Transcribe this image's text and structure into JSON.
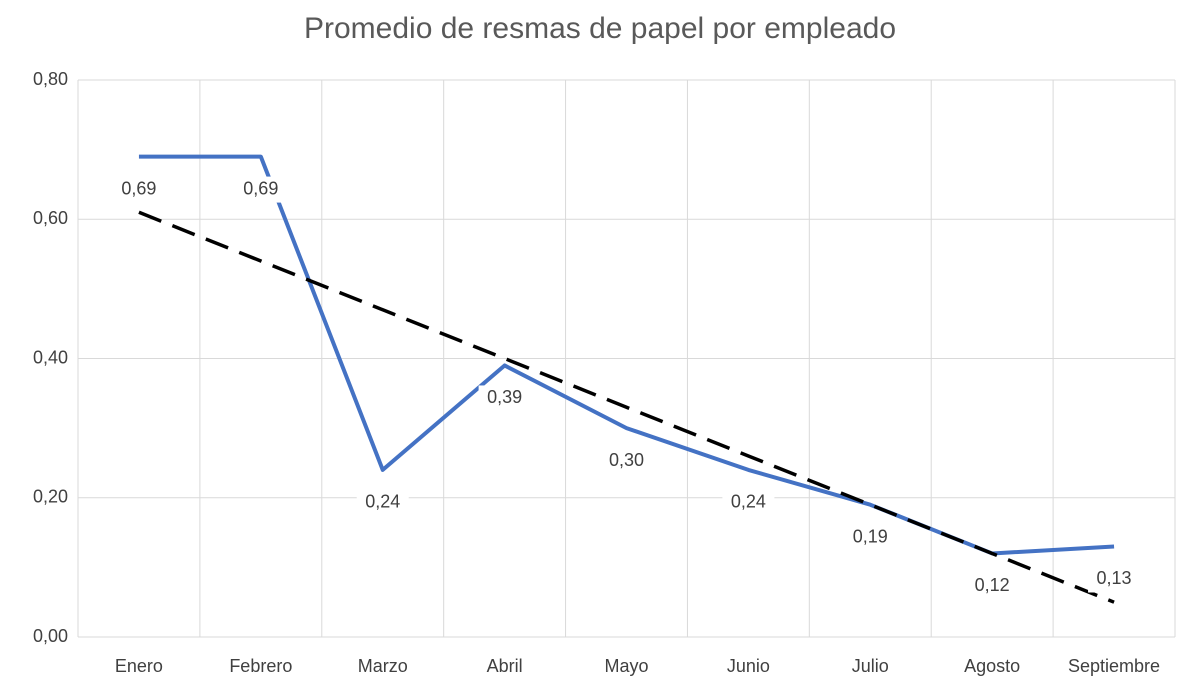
{
  "chart_data": {
    "type": "line",
    "title": "Promedio de resmas de papel por empleado",
    "categories": [
      "Enero",
      "Febrero",
      "Marzo",
      "Abril",
      "Mayo",
      "Junio",
      "Julio",
      "Agosto",
      "Septiembre"
    ],
    "series": [
      {
        "color": "#4472c4",
        "values": [
          0.69,
          0.69,
          0.24,
          0.39,
          0.3,
          0.24,
          0.19,
          0.12,
          0.13
        ],
        "value_labels": [
          "0,69",
          "0,69",
          "0,24",
          "0,39",
          "0,30",
          "0,24",
          "0,19",
          "0,12",
          "0,13"
        ]
      }
    ],
    "trendline": {
      "color": "#000000",
      "values": [
        0.61,
        0.54,
        0.47,
        0.4,
        0.33,
        0.26,
        0.19,
        0.12,
        0.05
      ]
    },
    "ylim": [
      0,
      0.8
    ],
    "yticks": [
      {
        "value": 0,
        "label": "0,00"
      },
      {
        "value": 0.2,
        "label": "0,20"
      },
      {
        "value": 0.4,
        "label": "0,40"
      },
      {
        "value": 0.6,
        "label": "0,60"
      },
      {
        "value": 0.8,
        "label": "0,80"
      }
    ],
    "grid": true
  }
}
